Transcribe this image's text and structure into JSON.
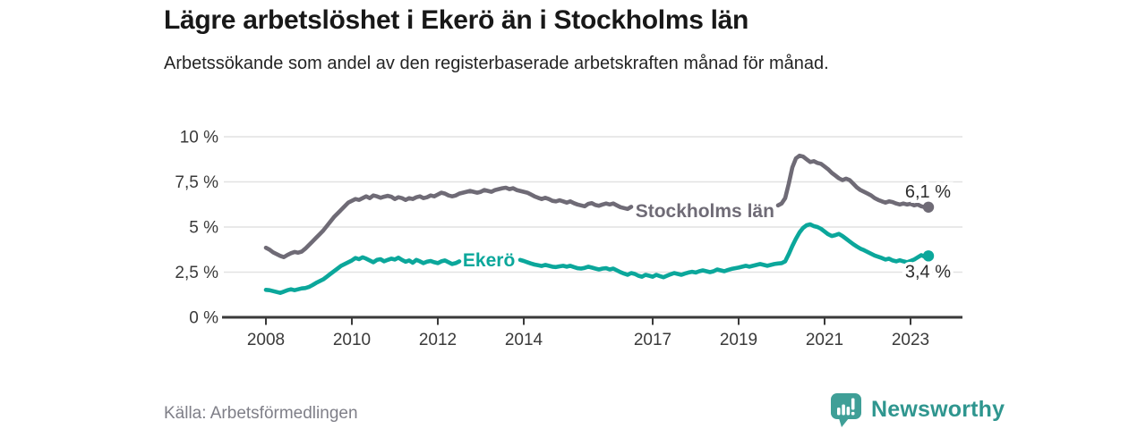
{
  "title": "Lägre arbetslöshet i Ekerö än i Stockholms län",
  "subtitle": "Arbetssökande som andel av den registerbaserade arbetskraften månad för månad.",
  "source": "Källa: Arbetsförmedlingen",
  "brand": {
    "name": "Newsworthy",
    "text_color": "#2f968f",
    "mark_color": "#3f9f97",
    "mark_icon": "bar-chart-speech-bubble"
  },
  "colors": {
    "background": "#ffffff",
    "axis": "#3a3a3a",
    "gridline": "#e2e2e2",
    "end_label_text": "#2d2d2d",
    "stockholm_gray": "#6f6b76",
    "ekero_teal": "#0ba79b"
  },
  "chart_data": {
    "type": "line",
    "unit": "%",
    "x_start_year": 2008,
    "x_months_per_point": 1,
    "x_tick_years": [
      2008,
      2010,
      2012,
      2014,
      2017,
      2019,
      2021,
      2023
    ],
    "ylim": [
      0,
      10
    ],
    "grid": "horizontal",
    "y_ticks": {
      "values": [
        0,
        2.5,
        5,
        7.5,
        10
      ],
      "labels": [
        "0 %",
        "2,5 %",
        "5 %",
        "7,5 %",
        "10 %"
      ]
    },
    "series": [
      {
        "name": "Stockholms län",
        "slug": "stockholms-lan",
        "color": "#6f6b76",
        "end_label": "6,1 %",
        "last_value": 6.1,
        "label_gap": [
          2016.55,
          2019.88
        ],
        "values": [
          3.85,
          3.75,
          3.6,
          3.5,
          3.4,
          3.33,
          3.45,
          3.55,
          3.62,
          3.58,
          3.64,
          3.8,
          4.0,
          4.2,
          4.4,
          4.6,
          4.8,
          5.05,
          5.3,
          5.55,
          5.75,
          5.95,
          6.15,
          6.35,
          6.45,
          6.55,
          6.5,
          6.6,
          6.7,
          6.6,
          6.75,
          6.7,
          6.62,
          6.68,
          6.73,
          6.68,
          6.55,
          6.65,
          6.6,
          6.5,
          6.6,
          6.55,
          6.65,
          6.7,
          6.6,
          6.65,
          6.75,
          6.7,
          6.8,
          6.9,
          6.85,
          6.75,
          6.7,
          6.75,
          6.85,
          6.9,
          6.95,
          7.0,
          6.95,
          6.9,
          6.95,
          7.05,
          7.0,
          6.95,
          7.05,
          7.1,
          7.15,
          7.18,
          7.1,
          7.15,
          7.05,
          7.0,
          6.95,
          6.9,
          6.8,
          6.7,
          6.62,
          6.55,
          6.62,
          6.55,
          6.45,
          6.42,
          6.48,
          6.42,
          6.35,
          6.42,
          6.32,
          6.25,
          6.2,
          6.15,
          6.28,
          6.32,
          6.22,
          6.18,
          6.25,
          6.3,
          6.25,
          6.3,
          6.2,
          6.1,
          6.05,
          6.0,
          6.12,
          6.15,
          6.05,
          6.0,
          6.05,
          6.1,
          6.05,
          6.1,
          6.0,
          5.95,
          5.9,
          5.92,
          6.0,
          6.05,
          5.95,
          5.9,
          5.95,
          6.0,
          5.95,
          6.0,
          5.92,
          5.88,
          5.85,
          5.88,
          5.95,
          6.0,
          5.92,
          5.88,
          5.92,
          5.98,
          5.95,
          6.0,
          5.95,
          6.0,
          6.05,
          6.08,
          6.15,
          6.1,
          6.05,
          6.1,
          6.15,
          6.2,
          6.3,
          6.6,
          7.4,
          8.3,
          8.8,
          8.95,
          8.9,
          8.75,
          8.6,
          8.65,
          8.55,
          8.5,
          8.35,
          8.2,
          8.0,
          7.85,
          7.7,
          7.6,
          7.68,
          7.6,
          7.4,
          7.2,
          7.05,
          6.95,
          6.85,
          6.75,
          6.6,
          6.5,
          6.42,
          6.35,
          6.42,
          6.38,
          6.3,
          6.25,
          6.3,
          6.25,
          6.28,
          6.2,
          6.25,
          6.15,
          6.1,
          6.1
        ]
      },
      {
        "name": "Ekerö",
        "slug": "ekero",
        "color": "#0ba79b",
        "end_label": "3,4 %",
        "last_value": 3.4,
        "label_gap": [
          2012.5,
          2013.88
        ],
        "values": [
          1.52,
          1.5,
          1.45,
          1.4,
          1.35,
          1.42,
          1.5,
          1.55,
          1.5,
          1.55,
          1.6,
          1.62,
          1.68,
          1.78,
          1.9,
          2.0,
          2.1,
          2.25,
          2.4,
          2.55,
          2.7,
          2.85,
          2.95,
          3.05,
          3.15,
          3.28,
          3.22,
          3.32,
          3.25,
          3.15,
          3.05,
          3.18,
          3.22,
          3.1,
          3.18,
          3.25,
          3.2,
          3.3,
          3.18,
          3.08,
          3.15,
          3.02,
          3.18,
          3.1,
          3.0,
          3.08,
          3.12,
          3.05,
          3.0,
          3.1,
          3.15,
          3.05,
          2.95,
          3.0,
          3.1,
          3.05,
          3.0,
          3.05,
          3.1,
          3.05,
          3.08,
          3.15,
          3.05,
          3.0,
          3.05,
          3.1,
          3.05,
          3.0,
          3.1,
          3.15,
          3.2,
          3.18,
          3.12,
          3.05,
          2.98,
          2.92,
          2.88,
          2.84,
          2.9,
          2.85,
          2.8,
          2.78,
          2.82,
          2.85,
          2.8,
          2.85,
          2.78,
          2.72,
          2.7,
          2.74,
          2.8,
          2.75,
          2.7,
          2.65,
          2.7,
          2.72,
          2.65,
          2.7,
          2.6,
          2.5,
          2.42,
          2.35,
          2.45,
          2.4,
          2.3,
          2.25,
          2.35,
          2.3,
          2.25,
          2.35,
          2.28,
          2.22,
          2.3,
          2.38,
          2.45,
          2.4,
          2.35,
          2.42,
          2.48,
          2.52,
          2.48,
          2.55,
          2.6,
          2.55,
          2.5,
          2.55,
          2.65,
          2.6,
          2.55,
          2.62,
          2.68,
          2.72,
          2.75,
          2.8,
          2.85,
          2.8,
          2.85,
          2.9,
          2.95,
          2.9,
          2.85,
          2.9,
          2.95,
          2.98,
          3.0,
          3.1,
          3.5,
          3.95,
          4.35,
          4.7,
          4.95,
          5.1,
          5.15,
          5.05,
          5.0,
          4.9,
          4.75,
          4.6,
          4.5,
          4.55,
          4.62,
          4.5,
          4.35,
          4.2,
          4.05,
          3.92,
          3.8,
          3.72,
          3.62,
          3.52,
          3.42,
          3.35,
          3.28,
          3.2,
          3.25,
          3.15,
          3.1,
          3.16,
          3.1,
          3.05,
          3.12,
          3.2,
          3.32,
          3.44,
          3.35,
          3.4
        ]
      }
    ]
  }
}
